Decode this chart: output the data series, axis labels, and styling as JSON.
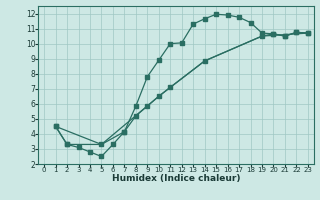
{
  "xlabel": "Humidex (Indice chaleur)",
  "bg_color": "#cde8e4",
  "grid_color": "#a0c8c4",
  "line_color": "#2a6e62",
  "xlim": [
    -0.5,
    23.5
  ],
  "ylim": [
    2,
    12.5
  ],
  "xticks": [
    0,
    1,
    2,
    3,
    4,
    5,
    6,
    7,
    8,
    9,
    10,
    11,
    12,
    13,
    14,
    15,
    16,
    17,
    18,
    19,
    20,
    21,
    22,
    23
  ],
  "yticks": [
    2,
    3,
    4,
    5,
    6,
    7,
    8,
    9,
    10,
    11,
    12
  ],
  "line1_x": [
    1,
    2,
    3,
    4,
    5,
    6,
    7,
    8,
    9,
    10,
    11,
    12,
    13,
    14,
    15,
    16,
    17,
    18,
    19,
    20,
    21,
    22,
    23
  ],
  "line1_y": [
    4.5,
    3.3,
    3.1,
    2.8,
    2.5,
    3.3,
    4.15,
    5.85,
    7.8,
    8.9,
    10.0,
    10.05,
    11.3,
    11.65,
    11.95,
    11.9,
    11.75,
    11.4,
    10.7,
    10.65,
    10.5,
    10.75,
    10.7
  ],
  "line2_x": [
    1,
    2,
    5,
    7,
    8,
    9,
    10,
    11,
    14,
    19,
    20,
    21,
    22,
    23
  ],
  "line2_y": [
    4.5,
    3.3,
    3.3,
    4.15,
    5.2,
    5.85,
    6.5,
    7.1,
    8.85,
    10.5,
    10.65,
    10.5,
    10.75,
    10.7
  ],
  "line3_x": [
    1,
    5,
    10,
    14,
    19,
    23
  ],
  "line3_y": [
    4.5,
    3.3,
    6.5,
    8.85,
    10.5,
    10.7
  ]
}
